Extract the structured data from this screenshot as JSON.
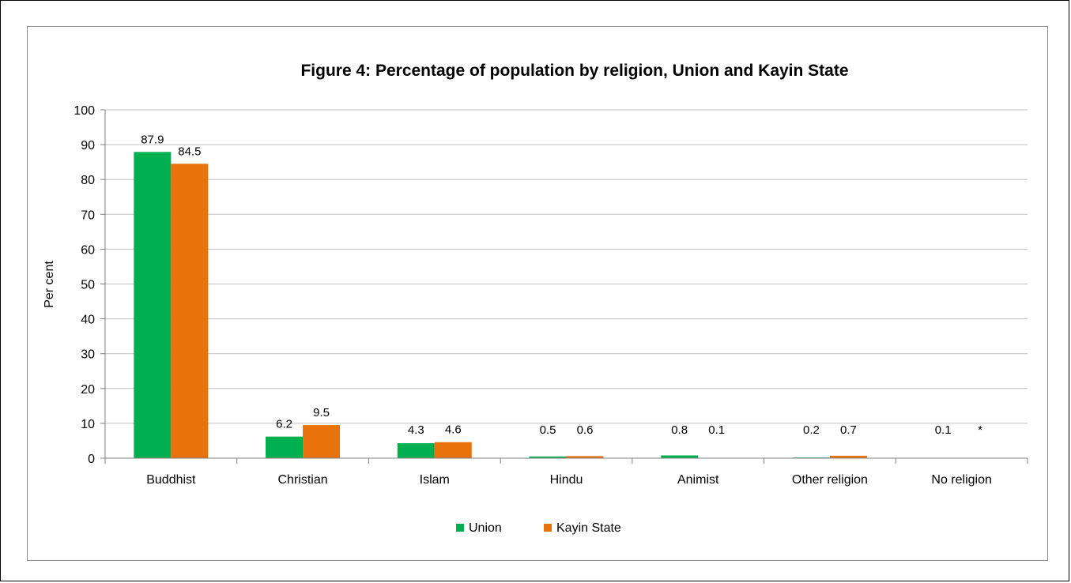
{
  "chart_data": {
    "type": "bar",
    "title": "Figure 4: Percentage of population by religion, Union and Kayin State",
    "xlabel": "",
    "ylabel": "Per cent",
    "ylim": [
      0,
      100
    ],
    "yticks": [
      0,
      10,
      20,
      30,
      40,
      50,
      60,
      70,
      80,
      90,
      100
    ],
    "grid": true,
    "legend_position": "bottom",
    "categories": [
      "Buddhist",
      "Christian",
      "Islam",
      "Hindu",
      "Animist",
      "Other religion",
      "No religion"
    ],
    "series": [
      {
        "name": "Union",
        "color": "#00b050",
        "values": [
          87.9,
          6.2,
          4.3,
          0.5,
          0.8,
          0.2,
          0.1
        ],
        "labels": [
          "87.9",
          "6.2",
          "4.3",
          "0.5",
          "0.8",
          "0.2",
          "0.1"
        ]
      },
      {
        "name": "Kayin State",
        "color": "#e8720c",
        "values": [
          84.5,
          9.5,
          4.6,
          0.6,
          0.1,
          0.7,
          0
        ],
        "labels": [
          "84.5",
          "9.5",
          "4.6",
          "0.6",
          "0.1",
          "0.7",
          "*"
        ]
      }
    ]
  }
}
